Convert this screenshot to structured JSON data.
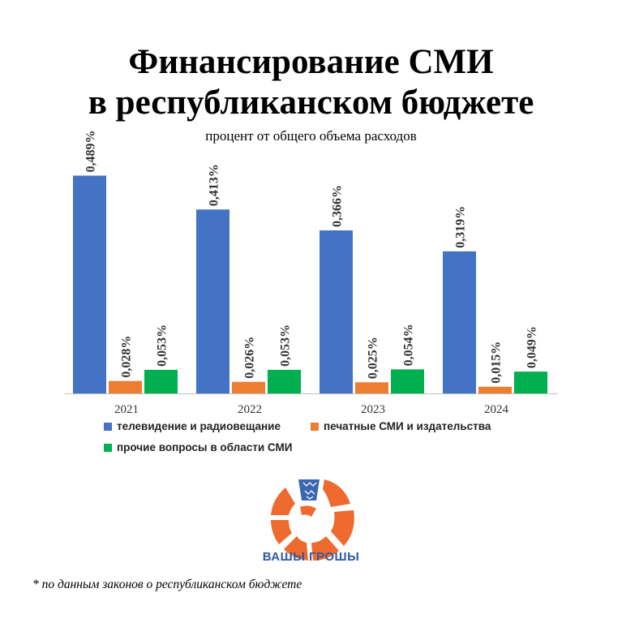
{
  "chart_data": {
    "type": "bar",
    "title": "Финансирование СМИ в республиканском бюджете",
    "title_lines": [
      "Финансирование СМИ",
      "в республиканском бюджете"
    ],
    "subtitle": "процент от общего объема расходов",
    "categories": [
      "2021",
      "2022",
      "2023",
      "2024"
    ],
    "series": [
      {
        "name": "телевидение и радиовещание",
        "color": "#4472c4",
        "values": [
          0.489,
          0.413,
          0.366,
          0.319
        ],
        "labels": [
          "0,489%",
          "0,413%",
          "0,366%",
          "0,319%"
        ]
      },
      {
        "name": "печатные СМИ и издательства",
        "color": "#ed7d31",
        "values": [
          0.028,
          0.026,
          0.025,
          0.015
        ],
        "labels": [
          "0,028%",
          "0,026%",
          "0,025%",
          "0,015%"
        ]
      },
      {
        "name": "прочие вопросы в области СМИ",
        "color": "#00b050",
        "values": [
          0.053,
          0.053,
          0.054,
          0.049
        ],
        "labels": [
          "0,053%",
          "0,053%",
          "0,054%",
          "0,049%"
        ]
      }
    ],
    "ylim": [
      0,
      0.55
    ],
    "grid": false,
    "legend_position": "bottom"
  },
  "brand": {
    "logo_text": "ВАШЫ ГРОШЫ",
    "logo_color": "#ee6a2e",
    "logo_text_color": "#2e5aa3"
  },
  "footnote": "* по данным законов о республиканском бюджете"
}
